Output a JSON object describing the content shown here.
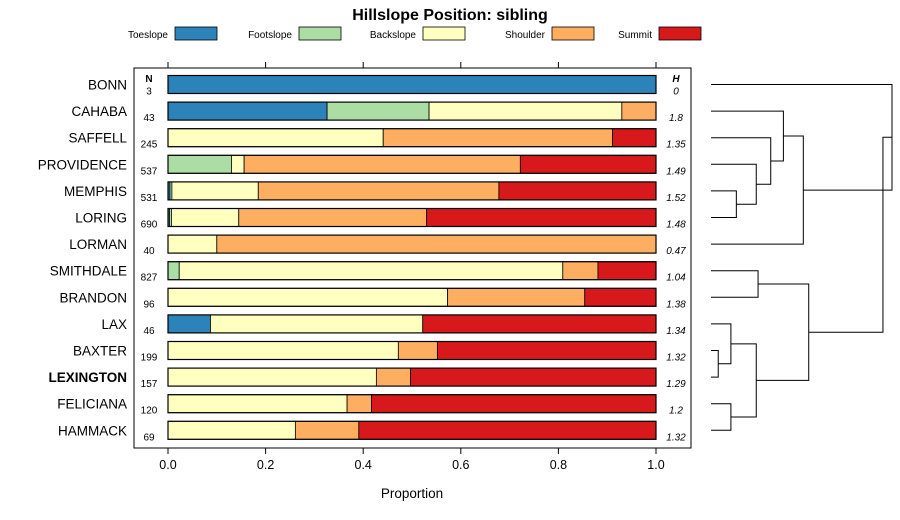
{
  "chart_data": {
    "type": "bar",
    "orientation": "horizontal",
    "stacked": true,
    "title": "Hillslope Position: sibling",
    "xlabel": "Proportion",
    "ylabel": "",
    "xlim": [
      0,
      1
    ],
    "xticks": [
      0,
      0.2,
      0.4,
      0.6,
      0.8,
      1
    ],
    "xtick_labels": [
      "0.0",
      "0.2",
      "0.4",
      "0.6",
      "0.8",
      "1.0"
    ],
    "n_header": "N",
    "h_header": "H",
    "legend_position": "top",
    "series": [
      {
        "name": "Toeslope",
        "color": "#2B83BA"
      },
      {
        "name": "Footslope",
        "color": "#ABDDA4"
      },
      {
        "name": "Backslope",
        "color": "#FFFFBF"
      },
      {
        "name": "Shoulder",
        "color": "#FDAE61"
      },
      {
        "name": "Summit",
        "color": "#D7191C"
      }
    ],
    "rows": [
      {
        "name": "BONN",
        "bold": false,
        "n": "3",
        "h": "0",
        "values": [
          1.0,
          0,
          0,
          0,
          0
        ]
      },
      {
        "name": "CAHABA",
        "bold": false,
        "n": "43",
        "h": "1.8",
        "values": [
          0.326,
          0.209,
          0.395,
          0.07,
          0
        ]
      },
      {
        "name": "SAFFELL",
        "bold": false,
        "n": "245",
        "h": "1.35",
        "values": [
          0,
          0,
          0.441,
          0.47,
          0.089
        ]
      },
      {
        "name": "PROVIDENCE",
        "bold": false,
        "n": "537",
        "h": "1.49",
        "values": [
          0,
          0.13,
          0.026,
          0.566,
          0.278
        ]
      },
      {
        "name": "MEMPHIS",
        "bold": false,
        "n": "531",
        "h": "1.52",
        "values": [
          0.004,
          0.004,
          0.177,
          0.493,
          0.322
        ]
      },
      {
        "name": "LORING",
        "bold": false,
        "n": "690",
        "h": "1.48",
        "values": [
          0.003,
          0.004,
          0.138,
          0.385,
          0.47
        ]
      },
      {
        "name": "LORMAN",
        "bold": false,
        "n": "40",
        "h": "0.47",
        "values": [
          0,
          0,
          0.1,
          0.9,
          0
        ]
      },
      {
        "name": "SMITHDALE",
        "bold": false,
        "n": "827",
        "h": "1.04",
        "values": [
          0,
          0.023,
          0.786,
          0.072,
          0.119
        ]
      },
      {
        "name": "BRANDON",
        "bold": false,
        "n": "96",
        "h": "1.38",
        "values": [
          0,
          0,
          0.573,
          0.281,
          0.146
        ]
      },
      {
        "name": "LAX",
        "bold": false,
        "n": "46",
        "h": "1.34",
        "values": [
          0.087,
          0,
          0.435,
          0,
          0.478
        ]
      },
      {
        "name": "BAXTER",
        "bold": false,
        "n": "199",
        "h": "1.32",
        "values": [
          0,
          0,
          0.472,
          0.08,
          0.448
        ]
      },
      {
        "name": "LEXINGTON",
        "bold": true,
        "n": "157",
        "h": "1.29",
        "values": [
          0,
          0,
          0.427,
          0.07,
          0.503
        ]
      },
      {
        "name": "FELICIANA",
        "bold": false,
        "n": "120",
        "h": "1.2",
        "values": [
          0,
          0,
          0.367,
          0.05,
          0.583
        ]
      },
      {
        "name": "HAMMACK",
        "bold": false,
        "n": "69",
        "h": "1.32",
        "values": [
          0,
          0,
          0.261,
          0.13,
          0.609
        ]
      }
    ],
    "dendrogram": {
      "leaf_order": [
        "BONN",
        "CAHABA",
        "SAFFELL",
        "PROVIDENCE",
        "MEMPHIS",
        "LORING",
        "LORMAN",
        "SMITHDALE",
        "BRANDON",
        "LAX",
        "BAXTER",
        "LEXINGTON",
        "FELICIANA",
        "HAMMACK"
      ],
      "merges": [
        {
          "a": "MEMPHIS",
          "b": "LORING",
          "height": 0.14
        },
        {
          "a": "PROVIDENCE",
          "b": "c1",
          "height": 0.25
        },
        {
          "a": "SAFFELL",
          "b": "c2",
          "height": 0.33
        },
        {
          "a": "CAHABA",
          "b": "c3",
          "height": 0.4
        },
        {
          "a": "c4",
          "b": "LORMAN",
          "height": 0.51
        },
        {
          "a": "BONN",
          "b": "c5",
          "height": 1.0
        },
        {
          "a": "SMITHDALE",
          "b": "BRANDON",
          "height": 0.26
        },
        {
          "a": "BAXTER",
          "b": "LEXINGTON",
          "height": 0.04
        },
        {
          "a": "LAX",
          "b": "c8",
          "height": 0.11
        },
        {
          "a": "FELICIANA",
          "b": "HAMMACK",
          "height": 0.11
        },
        {
          "a": "c9",
          "b": "c10",
          "height": 0.25
        },
        {
          "a": "c7",
          "b": "c11",
          "height": 0.54
        },
        {
          "a": "c6",
          "b": "c12",
          "height": 0.95
        }
      ]
    }
  }
}
